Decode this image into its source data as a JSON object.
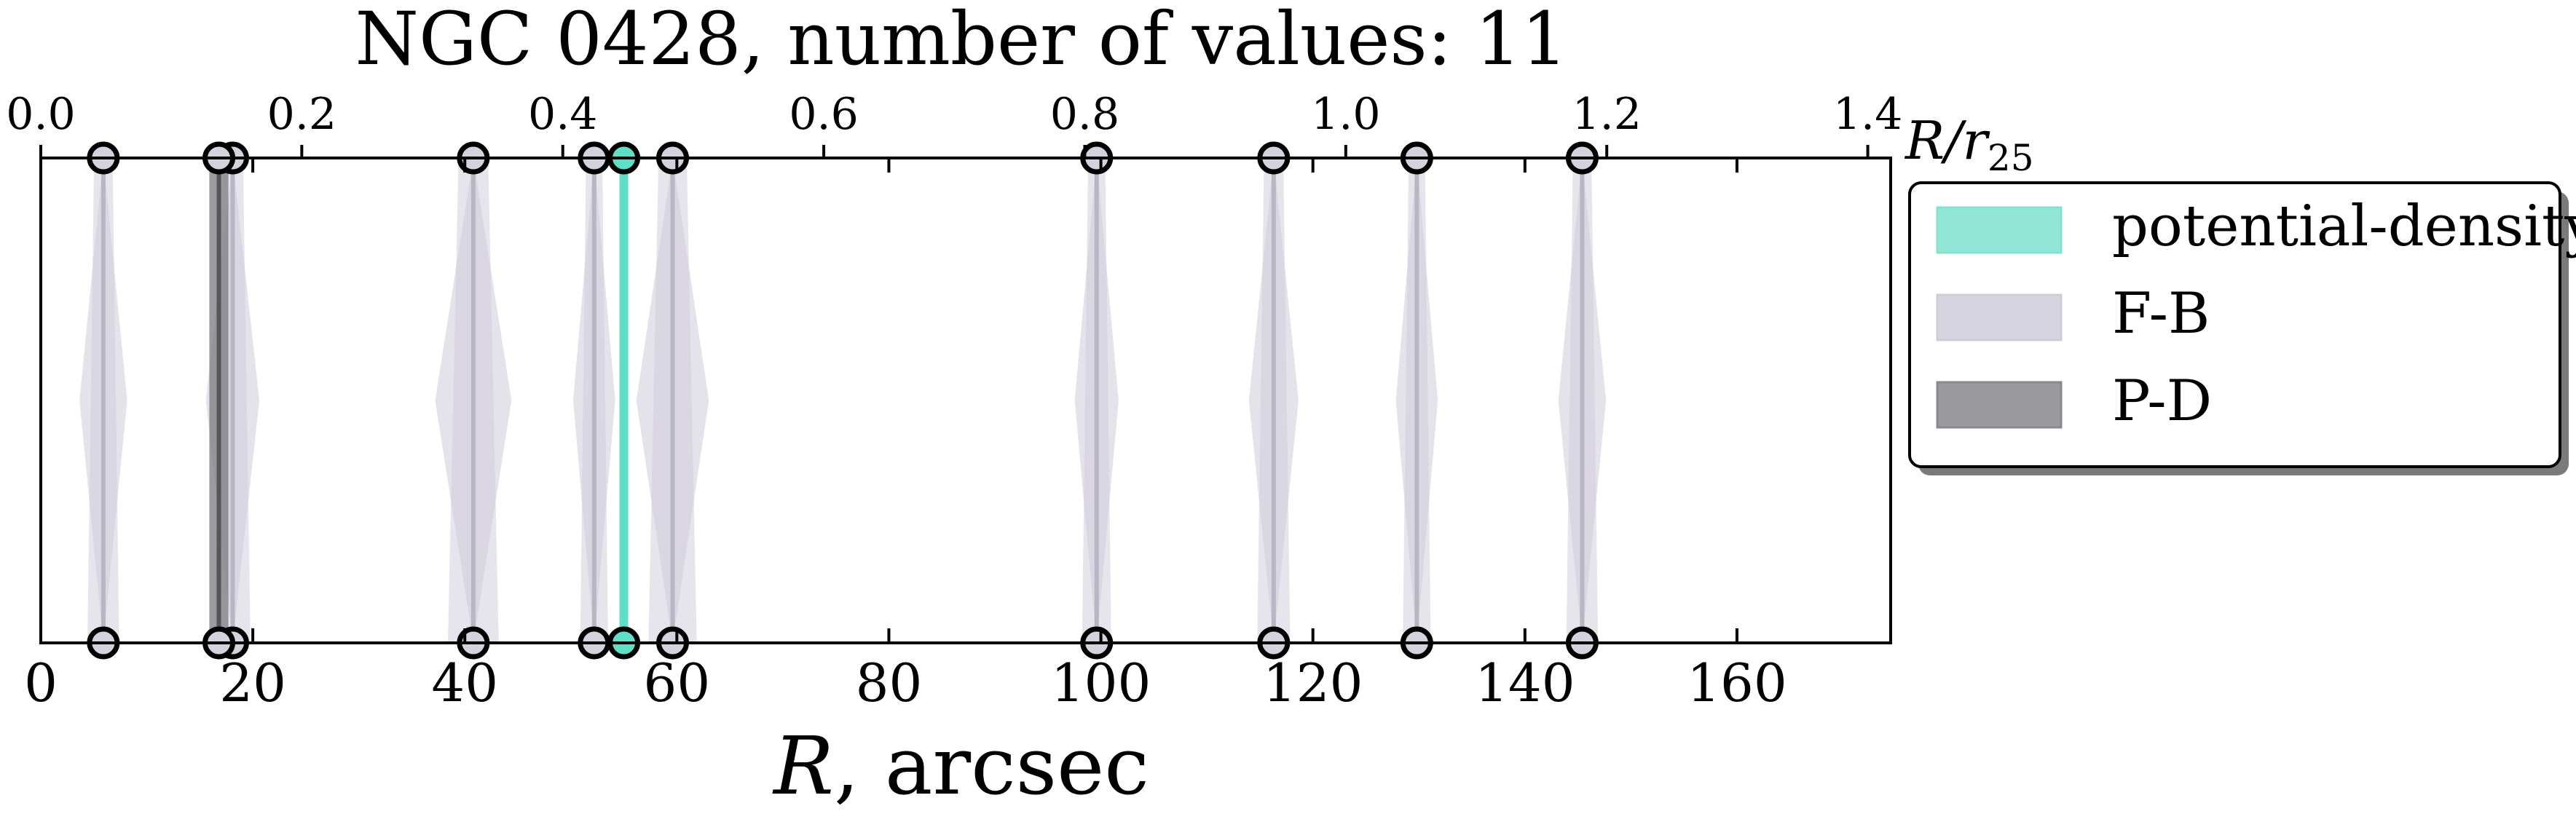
{
  "chart_data": {
    "type": "scatter",
    "title": "NGC 0428, number of values: 11",
    "xlabel_main": "R",
    "xlabel_rest": ", arcsec",
    "top_axis_label": {
      "main": "R/r",
      "sub": "25"
    },
    "x_ticks_bottom": [
      0,
      20,
      40,
      60,
      80,
      100,
      120,
      140,
      160
    ],
    "x_tick_labels_bottom": [
      "0",
      "20",
      "40",
      "60",
      "80",
      "100",
      "120",
      "140",
      "160"
    ],
    "xlim": [
      0,
      174.5
    ],
    "x_ticks_top": [
      0.0,
      0.2,
      0.4,
      0.6,
      0.8,
      1.0,
      1.2,
      1.4
    ],
    "x_tick_labels_top": [
      "0.0",
      "0.2",
      "0.4",
      "0.6",
      "0.8",
      "1.0",
      "1.2",
      "1.4"
    ],
    "r25_arcsec": 123.1,
    "legend_position": "outside-right",
    "legend": [
      {
        "label": "potential-density",
        "color": "#7fe3cf"
      },
      {
        "label": "F-B",
        "color": "#cfccd9"
      },
      {
        "label": "P-D",
        "color": "#8a8a8e"
      }
    ],
    "series": [
      {
        "name": "potential-density",
        "color": "#5ee0c6",
        "values": [
          {
            "r": 55.0,
            "err": 0.4
          }
        ]
      },
      {
        "name": "F-B",
        "color": "#cfccd9",
        "values": [
          {
            "r": 5.9,
            "err": 2.5
          },
          {
            "r": 18.1,
            "err": 2.8
          },
          {
            "r": 40.8,
            "err": 4.0
          },
          {
            "r": 52.2,
            "err": 2.2
          },
          {
            "r": 59.6,
            "err": 3.8
          },
          {
            "r": 99.6,
            "err": 2.3
          },
          {
            "r": 116.3,
            "err": 2.6
          },
          {
            "r": 129.8,
            "err": 2.2
          },
          {
            "r": 145.4,
            "err": 2.5
          }
        ]
      },
      {
        "name": "P-D",
        "color": "#7a7a80",
        "values": [
          {
            "r": 16.8,
            "err": 0.9
          }
        ]
      }
    ]
  }
}
